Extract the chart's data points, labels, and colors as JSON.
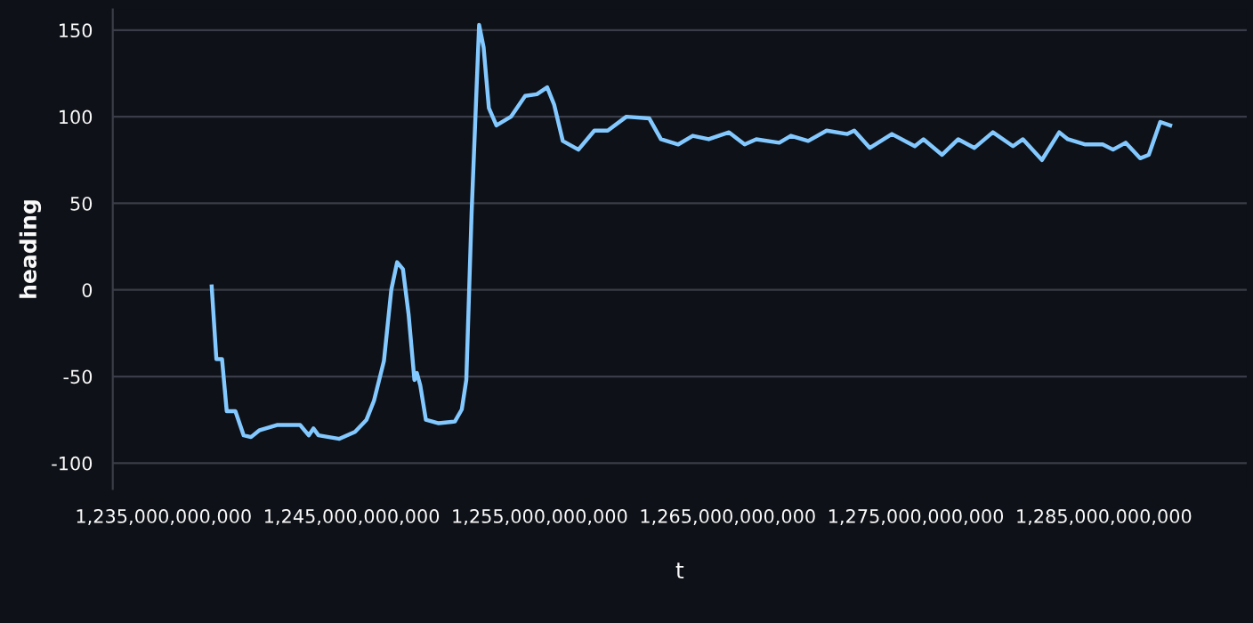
{
  "chart_data": {
    "type": "line",
    "xlabel": "t",
    "ylabel": "heading",
    "x": [
      1237560000000,
      1237810000000,
      1238110000000,
      1238360000000,
      1238820000000,
      1239260000000,
      1239650000000,
      1240110000000,
      1241030000000,
      1242260000000,
      1242720000000,
      1242970000000,
      1243240000000,
      1244350000000,
      1245180000000,
      1245790000000,
      1246190000000,
      1246720000000,
      1247110000000,
      1247420000000,
      1247730000000,
      1248030000000,
      1248340000000,
      1248470000000,
      1248650000000,
      1248950000000,
      1249630000000,
      1250490000000,
      1250860000000,
      1251100000000,
      1251380000000,
      1251780000000,
      1252020000000,
      1252300000000,
      1252700000000,
      1253470000000,
      1254230000000,
      1254850000000,
      1255400000000,
      1255770000000,
      1256230000000,
      1257060000000,
      1257910000000,
      1258620000000,
      1259610000000,
      1260830000000,
      1261450000000,
      1262370000000,
      1263140000000,
      1263990000000,
      1265070000000,
      1265900000000,
      1266520000000,
      1267740000000,
      1268360000000,
      1269280000000,
      1270260000000,
      1271360000000,
      1271730000000,
      1272560000000,
      1273730000000,
      1274950000000,
      1275410000000,
      1276400000000,
      1277260000000,
      1278120000000,
      1279100000000,
      1280170000000,
      1280700000000,
      1281710000000,
      1282630000000,
      1283090000000,
      1284020000000,
      1284940000000,
      1285490000000,
      1286160000000,
      1286930000000,
      1287390000000,
      1288000000000,
      1288530000000
    ],
    "series": [
      {
        "color": "#83c9ff",
        "values": [
          2,
          -40,
          -40,
          -70,
          -70,
          -84,
          -85,
          -81,
          -78,
          -78,
          -84,
          -80,
          -84,
          -86,
          -82,
          -75,
          -64,
          -41,
          0,
          16,
          12,
          -14,
          -52,
          -48,
          -55,
          -75,
          -77,
          -76,
          -69,
          -52,
          44,
          153,
          140,
          105,
          95,
          100,
          112,
          113,
          117,
          107,
          86,
          81,
          92,
          92,
          100,
          99,
          87,
          84,
          89,
          87,
          91,
          84,
          87,
          85,
          89,
          86,
          92,
          90,
          92,
          82,
          90,
          83,
          87,
          78,
          87,
          82,
          91,
          83,
          87,
          75,
          91,
          87,
          84,
          84,
          81,
          85,
          76,
          78,
          97,
          95
        ]
      }
    ],
    "xlim": [
      1232300000000,
      1292600000000
    ],
    "ylim": [
      -115,
      162
    ],
    "xticks": [
      {
        "value": 1235000000000,
        "label": "1,235,000,000,000"
      },
      {
        "value": 1245000000000,
        "label": "1,245,000,000,000"
      },
      {
        "value": 1255000000000,
        "label": "1,255,000,000,000"
      },
      {
        "value": 1265000000000,
        "label": "1,265,000,000,000"
      },
      {
        "value": 1275000000000,
        "label": "1,275,000,000,000"
      },
      {
        "value": 1285000000000,
        "label": "1,285,000,000,000"
      }
    ],
    "yticks": [
      -100,
      -50,
      0,
      50,
      100,
      150
    ],
    "grid": "y",
    "marker": "none",
    "line_style": "solid"
  }
}
